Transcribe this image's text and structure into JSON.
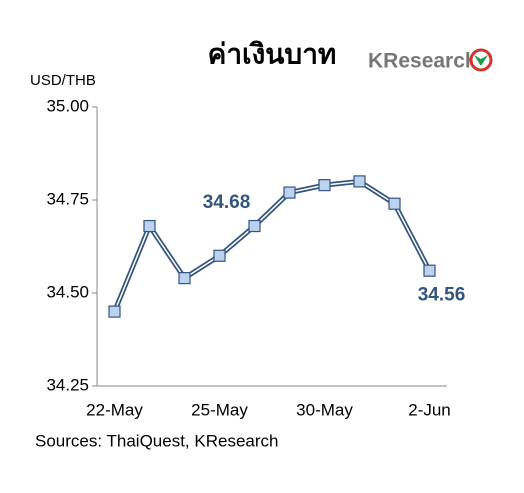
{
  "chart_data": {
    "type": "line",
    "title": "ค่าเงินบาท",
    "logo": "KResearch",
    "y_label": "USD/THB",
    "source": "Sources: ThaiQuest, KResearch",
    "categories": [
      "22-May",
      null,
      null,
      "25-May",
      null,
      null,
      "30-May",
      null,
      null,
      "2-Jun"
    ],
    "values": [
      34.45,
      34.68,
      34.54,
      34.6,
      34.68,
      34.77,
      34.79,
      34.8,
      34.74,
      34.56
    ],
    "value_labels": [
      null,
      null,
      null,
      null,
      "34.68",
      null,
      null,
      null,
      null,
      "34.56"
    ],
    "color": "#35557f",
    "marker_color": "#bcd2ee",
    "ylim": [
      34.25,
      35.0
    ],
    "yticks": [
      {
        "value": 34.25,
        "label": "34.25"
      },
      {
        "value": 34.5,
        "label": "34.50"
      },
      {
        "value": 34.75,
        "label": "34.75"
      },
      {
        "value": 35.0,
        "label": "35.00"
      }
    ],
    "grid": false
  }
}
